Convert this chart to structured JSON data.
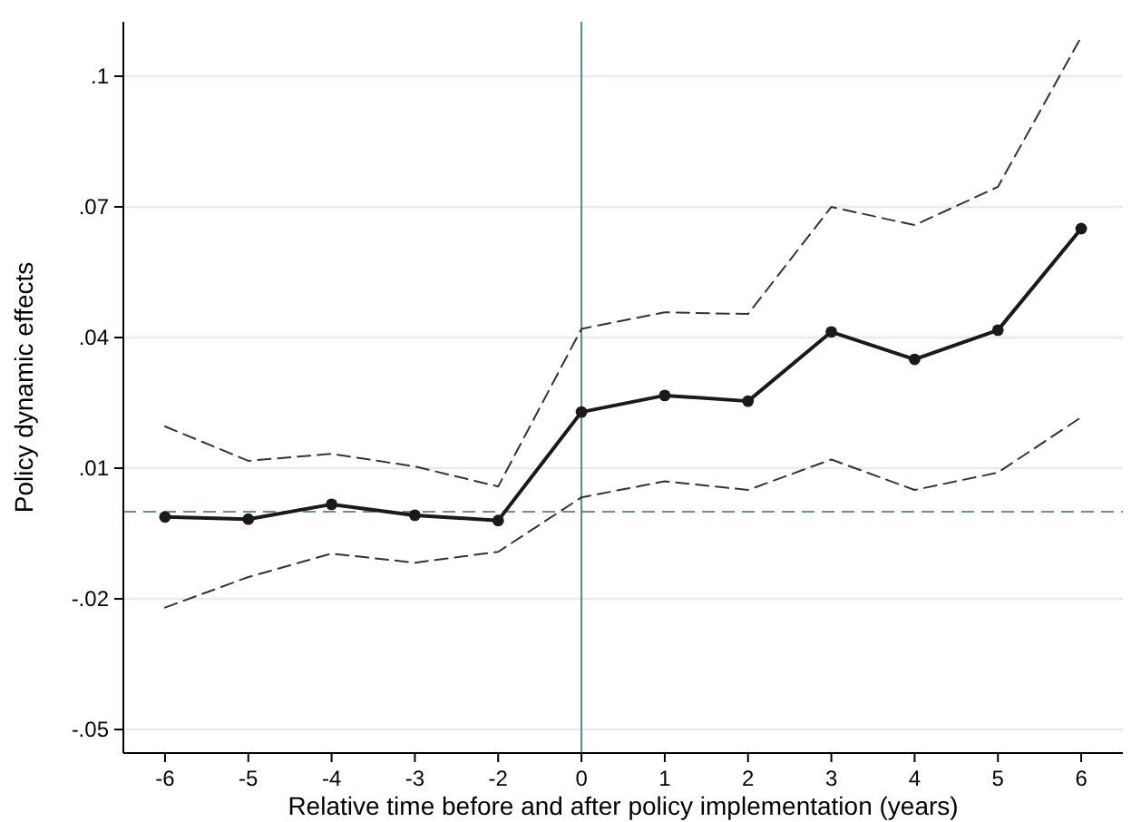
{
  "chart_data": {
    "type": "line",
    "xlabel": "Relative time before and after policy implementation (years)",
    "ylabel": "Policy dynamic effects",
    "categories": [
      "-6",
      "-5",
      "-4",
      "-3",
      "-2",
      "0",
      "1",
      "2",
      "3",
      "4",
      "5",
      "6"
    ],
    "series": [
      {
        "color": "#1a1a1a",
        "marker": "circle",
        "line_style": "solid",
        "values": [
          -0.0012,
          -0.0017,
          0.0017,
          -0.0008,
          -0.002,
          0.0229,
          0.0267,
          0.0254,
          0.0413,
          0.035,
          0.0417,
          0.065
        ]
      },
      {
        "color": "#333333",
        "marker": "none",
        "line_style": "dashed",
        "values": [
          0.0196,
          0.0117,
          0.0133,
          0.0104,
          0.0058,
          0.042,
          0.0458,
          0.0454,
          0.07,
          0.0658,
          0.0746,
          0.109
        ]
      },
      {
        "color": "#333333",
        "marker": "none",
        "line_style": "dashed",
        "values": [
          -0.022,
          -0.015,
          -0.0096,
          -0.0117,
          -0.0092,
          0.0033,
          0.007,
          0.005,
          0.012,
          0.005,
          0.009,
          0.0217
        ]
      }
    ],
    "ylim": [
      -0.0554,
      0.1125
    ],
    "yticks": [
      {
        "value": -0.05,
        "label": "-.05"
      },
      {
        "value": -0.02,
        "label": "-.02"
      },
      {
        "value": 0.01,
        "label": ".01"
      },
      {
        "value": 0.04,
        "label": ".04"
      },
      {
        "value": 0.07,
        "label": ".07"
      },
      {
        "value": 0.1,
        "label": ".1"
      }
    ],
    "ref_lines": [
      {
        "axis": "y",
        "value": 0,
        "color": "#6f8f8f",
        "line_style": "dashed"
      },
      {
        "axis": "x",
        "value": "0",
        "color": "#4f8a8a",
        "line_style": "solid"
      }
    ],
    "grid": "y"
  }
}
